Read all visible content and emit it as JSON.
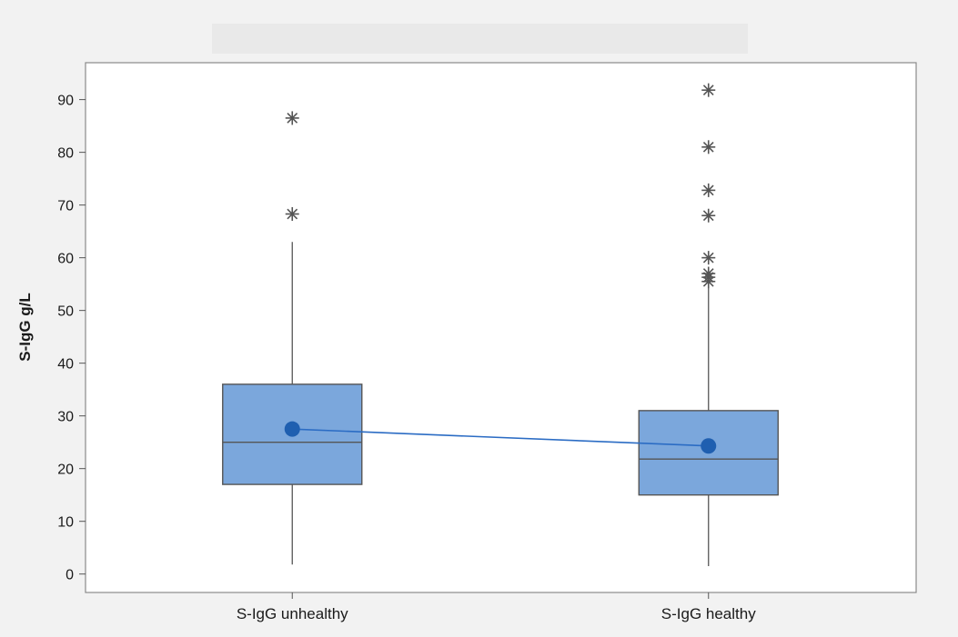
{
  "chart_data": {
    "type": "boxplot",
    "title": "",
    "xlabel": "",
    "ylabel": "S-IgG g/L",
    "ylim": [
      -3.5,
      97
    ],
    "yticks": [
      0,
      10,
      20,
      30,
      40,
      50,
      60,
      70,
      80,
      90
    ],
    "grid": false,
    "categories": [
      "S-IgG unhealthy",
      "S-IgG healthy"
    ],
    "boxes": [
      {
        "category": "S-IgG unhealthy",
        "whisker_low": 1.8,
        "q1": 17,
        "median": 25,
        "q3": 36,
        "whisker_high": 63,
        "mean": 27.5,
        "outliers": [
          68.3,
          86.5
        ]
      },
      {
        "category": "S-IgG healthy",
        "whisker_low": 1.5,
        "q1": 15,
        "median": 21.8,
        "q3": 31,
        "whisker_high": 54.5,
        "mean": 24.3,
        "outliers": [
          55.5,
          56.3,
          57,
          60,
          68,
          72.8,
          81,
          91.8
        ]
      }
    ],
    "mean_line": true,
    "colors": {
      "box_fill": "#7ba7dc",
      "box_stroke": "#555555",
      "mean_marker": "#1f5fb0",
      "mean_line": "#2b6cc4",
      "outlier": "#555555",
      "background": "#f2f2f2",
      "plot_background": "#ffffff"
    }
  }
}
